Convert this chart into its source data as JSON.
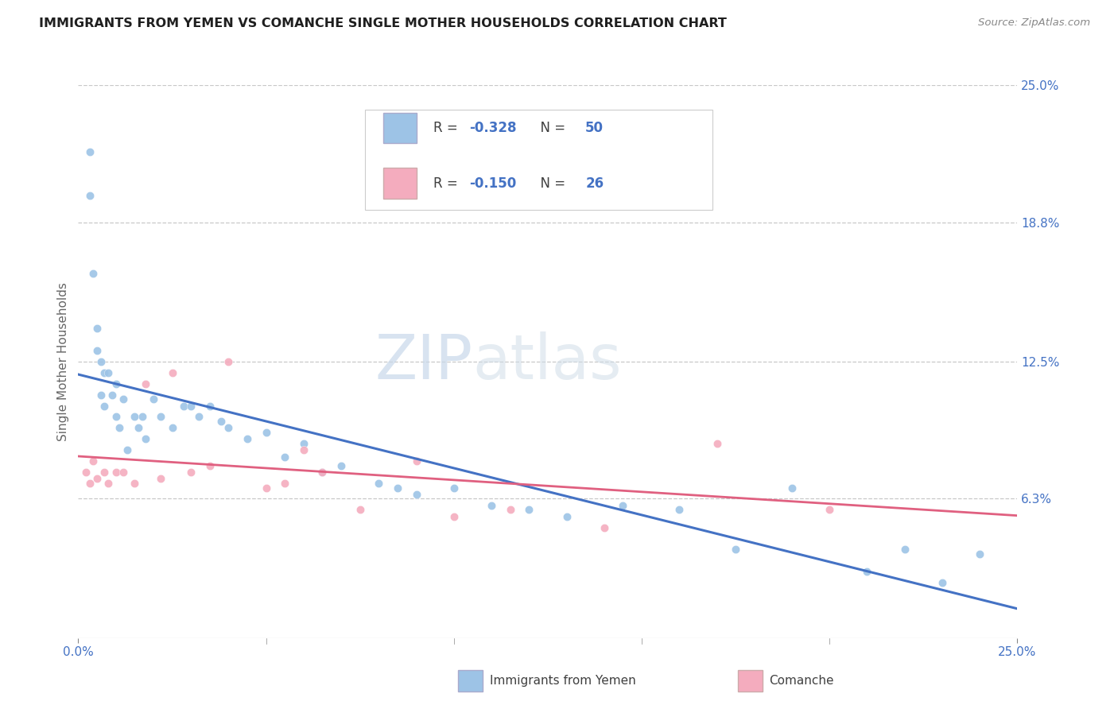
{
  "title": "IMMIGRANTS FROM YEMEN VS COMANCHE SINGLE MOTHER HOUSEHOLDS CORRELATION CHART",
  "source": "Source: ZipAtlas.com",
  "ylabel": "Single Mother Households",
  "xlim": [
    0.0,
    0.25
  ],
  "ylim": [
    0.0,
    0.25
  ],
  "xtick_positions": [
    0.0,
    0.25
  ],
  "xtick_labels": [
    "0.0%",
    "25.0%"
  ],
  "ytick_labels_right": [
    "25.0%",
    "18.8%",
    "12.5%",
    "6.3%"
  ],
  "ytick_positions_right": [
    0.25,
    0.188,
    0.125,
    0.063
  ],
  "legend_label1": "Immigrants from Yemen",
  "legend_label2": "Comanche",
  "R1": "-0.328",
  "N1": "50",
  "R2": "-0.150",
  "N2": "26",
  "watermark_zip": "ZIP",
  "watermark_atlas": "atlas",
  "blue_line_color": "#4472C4",
  "pink_line_color": "#E06080",
  "blue_scatter_color": "#9DC3E6",
  "pink_scatter_color": "#F4ACBE",
  "blue_text_color": "#4472C4",
  "text_color_dark": "#404040",
  "grid_color": "#C8C8C8",
  "legend_text_color": "#404040",
  "title_color": "#1F1F1F",
  "source_color": "#888888",
  "blue_points_x": [
    0.003,
    0.003,
    0.004,
    0.005,
    0.005,
    0.006,
    0.006,
    0.007,
    0.007,
    0.008,
    0.009,
    0.01,
    0.01,
    0.011,
    0.012,
    0.013,
    0.015,
    0.016,
    0.017,
    0.018,
    0.02,
    0.022,
    0.025,
    0.028,
    0.03,
    0.032,
    0.035,
    0.038,
    0.04,
    0.045,
    0.05,
    0.055,
    0.06,
    0.065,
    0.07,
    0.08,
    0.085,
    0.09,
    0.1,
    0.11,
    0.12,
    0.13,
    0.145,
    0.16,
    0.175,
    0.19,
    0.21,
    0.22,
    0.23,
    0.24
  ],
  "blue_points_y": [
    0.22,
    0.2,
    0.165,
    0.13,
    0.14,
    0.125,
    0.11,
    0.105,
    0.12,
    0.12,
    0.11,
    0.115,
    0.1,
    0.095,
    0.108,
    0.085,
    0.1,
    0.095,
    0.1,
    0.09,
    0.108,
    0.1,
    0.095,
    0.105,
    0.105,
    0.1,
    0.105,
    0.098,
    0.095,
    0.09,
    0.093,
    0.082,
    0.088,
    0.075,
    0.078,
    0.07,
    0.068,
    0.065,
    0.068,
    0.06,
    0.058,
    0.055,
    0.06,
    0.058,
    0.04,
    0.068,
    0.03,
    0.04,
    0.025,
    0.038
  ],
  "pink_points_x": [
    0.002,
    0.003,
    0.004,
    0.005,
    0.007,
    0.008,
    0.01,
    0.012,
    0.015,
    0.018,
    0.022,
    0.025,
    0.03,
    0.035,
    0.04,
    0.05,
    0.055,
    0.06,
    0.065,
    0.075,
    0.09,
    0.1,
    0.115,
    0.14,
    0.17,
    0.2
  ],
  "pink_points_y": [
    0.075,
    0.07,
    0.08,
    0.072,
    0.075,
    0.07,
    0.075,
    0.075,
    0.07,
    0.115,
    0.072,
    0.12,
    0.075,
    0.078,
    0.125,
    0.068,
    0.07,
    0.085,
    0.075,
    0.058,
    0.08,
    0.055,
    0.058,
    0.05,
    0.088,
    0.058
  ]
}
